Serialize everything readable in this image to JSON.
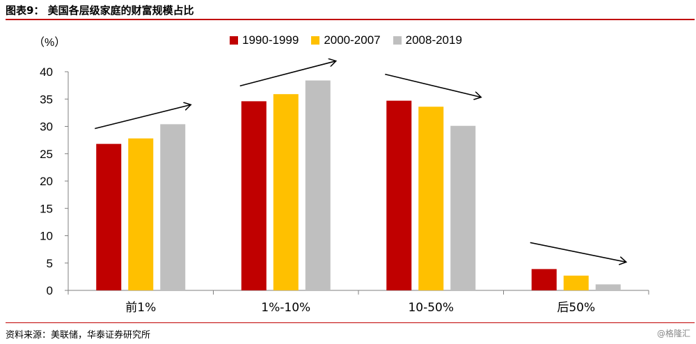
{
  "header": {
    "title": "图表9：  美国各层级家庭的财富规模占比"
  },
  "footer": {
    "source": "资料来源：美联储，华泰证券研究所",
    "watermark": "@格隆汇"
  },
  "chart_data": {
    "type": "bar",
    "unit_label": "（%）",
    "categories": [
      "前1%",
      "1%-10%",
      "10-50%",
      "后50%"
    ],
    "series": [
      {
        "name": "1990-1999",
        "color": "#c00000",
        "values": [
          26.8,
          34.6,
          34.7,
          3.9
        ]
      },
      {
        "name": "2000-2007",
        "color": "#ffc000",
        "values": [
          27.8,
          35.9,
          33.6,
          2.7
        ]
      },
      {
        "name": "2008-2019",
        "color": "#bfbfbf",
        "values": [
          30.4,
          38.4,
          30.1,
          1.1
        ]
      }
    ],
    "ylim": [
      0,
      40
    ],
    "yticks": [
      0,
      5,
      10,
      15,
      20,
      25,
      30,
      35,
      40
    ],
    "grid": false,
    "legend_position": "top",
    "trend_arrows": [
      "up",
      "up",
      "down",
      "down"
    ]
  }
}
